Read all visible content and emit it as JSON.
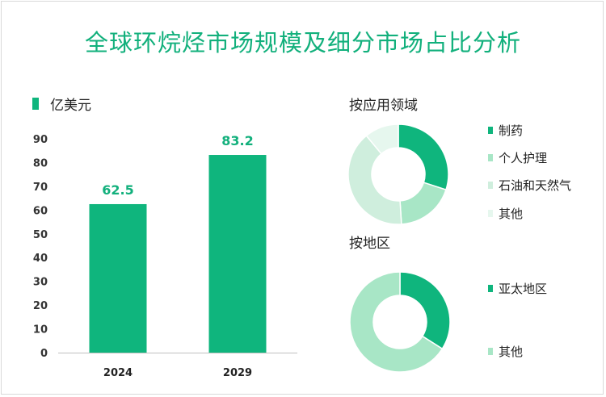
{
  "title": "全球环烷烃市场规模及细分市场占比分析",
  "colors": {
    "accent": "#0fb57d",
    "mid": "#a8e6c6",
    "light": "#cfeedd",
    "pale": "#e6f7ee"
  },
  "chart_data": [
    {
      "type": "bar",
      "unit_label": "亿美元",
      "categories": [
        "2024",
        "2029"
      ],
      "values": [
        62.5,
        83.2
      ],
      "data_labels": [
        "62.5",
        "83.2"
      ],
      "ylim": [
        0,
        90
      ],
      "yticks": [
        "0",
        "10",
        "20",
        "30",
        "40",
        "50",
        "60",
        "70",
        "80",
        "90"
      ],
      "grid": false
    },
    {
      "type": "pie",
      "donut": true,
      "title": "按应用领域",
      "labels": [
        "制药",
        "个人护理",
        "石油和天然气",
        "其他"
      ],
      "values": [
        30,
        19,
        40,
        11
      ],
      "colors": [
        "#0fb57d",
        "#a8e6c6",
        "#cfeedd",
        "#e6f7ee"
      ]
    },
    {
      "type": "pie",
      "donut": true,
      "title": "按地区",
      "labels": [
        "亚太地区",
        "其他"
      ],
      "values": [
        34,
        66
      ],
      "colors": [
        "#0fb57d",
        "#a8e6c6"
      ]
    }
  ]
}
